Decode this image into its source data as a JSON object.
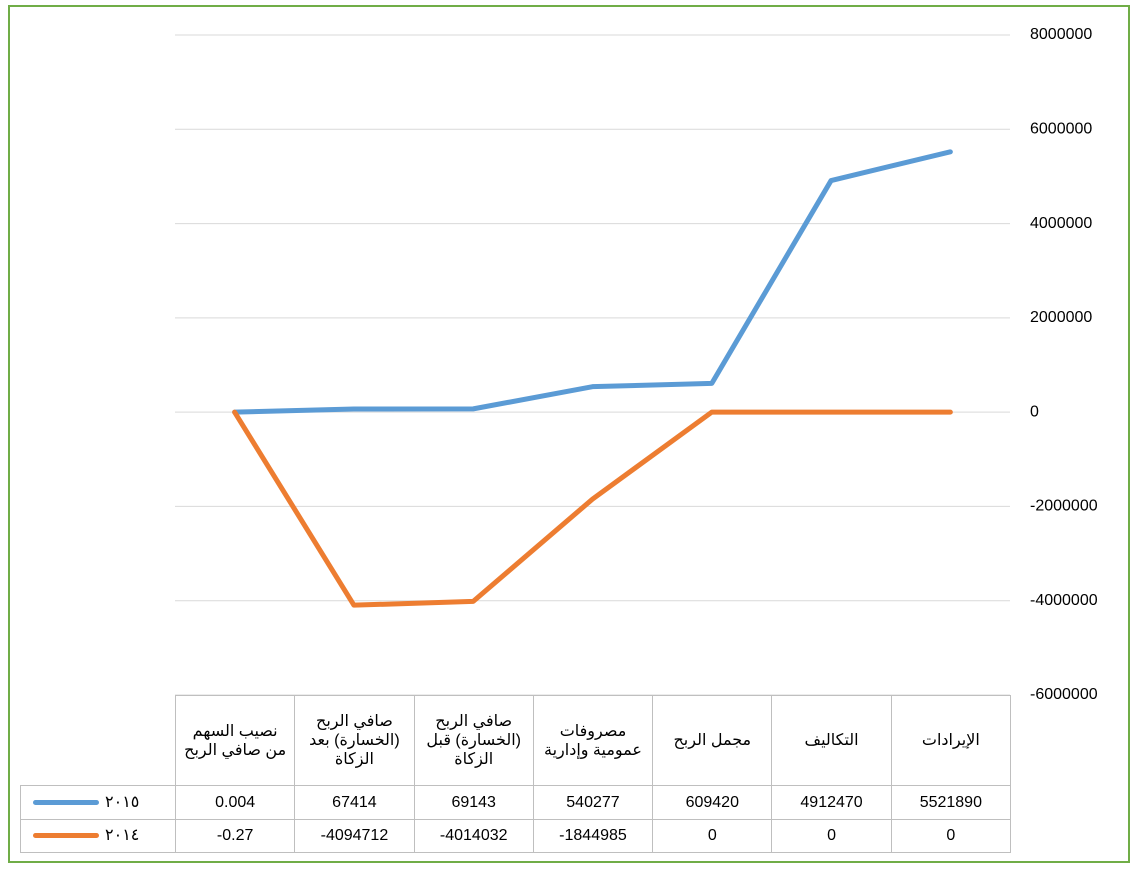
{
  "chart_data": {
    "type": "line",
    "categories": [
      "الإيرادات",
      "التكاليف",
      "مجمل الربح",
      "مصروفات عمومية وإدارية",
      "صافي الربح (الخسارة) قبل الزكاة",
      "صافي الربح (الخسارة) بعد الزكاة",
      "نصيب السهم من صافي الربح"
    ],
    "series": [
      {
        "name": "٢٠١٥",
        "color": "#5b9bd5",
        "values": [
          5521890,
          4912470,
          609420,
          540277,
          69143,
          67414,
          0.004
        ]
      },
      {
        "name": "٢٠١٤",
        "color": "#ed7d31",
        "values": [
          0,
          0,
          0,
          -1844985,
          -4014032,
          -4094712,
          -0.27
        ]
      }
    ],
    "ylim": [
      -6000000,
      8000000
    ],
    "yticks": [
      -6000000,
      -4000000,
      -2000000,
      0,
      2000000,
      4000000,
      6000000,
      8000000
    ],
    "grid": true,
    "x_reversed": true,
    "y_axis_side": "right",
    "data_table": true
  }
}
